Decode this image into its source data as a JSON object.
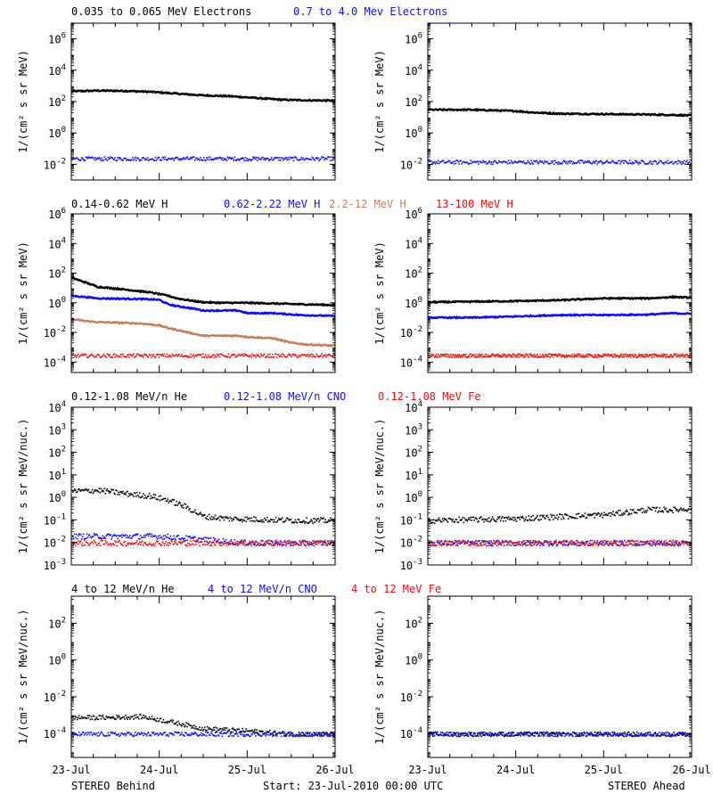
{
  "colors": {
    "black": "#000000",
    "blue": "#1010e0",
    "tan": "#c08060",
    "red": "#e01010"
  },
  "rows": [
    {
      "legend": [
        {
          "text": "0.035 to 0.065 MeV Electrons",
          "color": "#000000"
        },
        {
          "text": "0.7 to 4.0 Mev Electrons",
          "color": "#1010e0"
        }
      ]
    },
    {
      "legend": [
        {
          "text": "0.14-0.62 MeV H",
          "color": "#000000"
        },
        {
          "text": "0.62-2.22 MeV H",
          "color": "#1010e0"
        },
        {
          "text": "2.2-12 MeV H",
          "color": "#c08060"
        },
        {
          "text": "13-100 MeV H",
          "color": "#e01010"
        }
      ]
    },
    {
      "legend": [
        {
          "text": "0.12-1.08 MeV/n He",
          "color": "#000000"
        },
        {
          "text": "0.12-1.08 MeV/n CNO",
          "color": "#1010e0"
        },
        {
          "text": "0.12-1.08 MeV Fe",
          "color": "#e01010"
        }
      ]
    },
    {
      "legend": [
        {
          "text": "4 to 12 MeV/n He",
          "color": "#000000"
        },
        {
          "text": "4 to 12 MeV/n CNO",
          "color": "#1010e0"
        },
        {
          "text": "4 to 12 MeV Fe",
          "color": "#e01010"
        }
      ]
    }
  ],
  "x_ticks": [
    "23-Jul",
    "24-Jul",
    "25-Jul",
    "26-Jul"
  ],
  "footer": {
    "left": "STEREO Behind",
    "center": "Start: 23-Jul-2010 00:00 UTC",
    "right": "STEREO Ahead"
  },
  "chart_data": [
    {
      "type": "scatter",
      "panel": "STEREO Behind, row 1",
      "yscale": "log",
      "ylabel": "1/(cm² s sr MeV)",
      "ylim": [
        0.001,
        10000000
      ],
      "yticks": [
        {
          "v": 0.01,
          "t": "10",
          "e": "-2"
        },
        {
          "v": 1,
          "t": "10",
          "e": "0"
        },
        {
          "v": 100,
          "t": "10",
          "e": "2"
        },
        {
          "v": 10000,
          "t": "10",
          "e": "4"
        },
        {
          "v": 1000000,
          "t": "10",
          "e": "6"
        }
      ],
      "x_days": [
        0,
        3
      ],
      "x_tick_labels": [
        "23-Jul",
        "24-Jul",
        "25-Jul",
        "26-Jul"
      ],
      "series": [
        {
          "name": "0.035 to 0.065 MeV Electrons",
          "color": "#000000",
          "kind": "line",
          "x": [
            0,
            0.3,
            0.6,
            0.9,
            1.2,
            1.5,
            1.8,
            2.1,
            2.4,
            2.7,
            3.0
          ],
          "y": [
            450,
            500,
            480,
            420,
            320,
            250,
            220,
            170,
            130,
            120,
            115
          ]
        },
        {
          "name": "0.7 to 4.0 Mev Electrons",
          "color": "#1010e0",
          "kind": "noisy",
          "x": [
            0,
            1,
            2,
            3
          ],
          "y": [
            0.025,
            0.025,
            0.025,
            0.025
          ]
        }
      ]
    },
    {
      "type": "scatter",
      "panel": "STEREO Ahead, row 1",
      "yscale": "log",
      "ylabel": "1/(cm² s sr MeV)",
      "ylim": [
        0.001,
        10000000
      ],
      "yticks": [
        {
          "v": 0.01,
          "t": "10",
          "e": "-2"
        },
        {
          "v": 1,
          "t": "10",
          "e": "0"
        },
        {
          "v": 100,
          "t": "10",
          "e": "2"
        },
        {
          "v": 10000,
          "t": "10",
          "e": "4"
        },
        {
          "v": 1000000,
          "t": "10",
          "e": "6"
        }
      ],
      "x_days": [
        0,
        3
      ],
      "x_tick_labels": [
        "23-Jul",
        "24-Jul",
        "25-Jul",
        "26-Jul"
      ],
      "series": [
        {
          "name": "0.035 to 0.065 MeV Electrons",
          "color": "#000000",
          "kind": "line",
          "x": [
            0,
            0.5,
            1.0,
            1.2,
            1.5,
            2.0,
            2.5,
            2.8,
            3.0
          ],
          "y": [
            30,
            30,
            25,
            20,
            17,
            16,
            15,
            14,
            13
          ]
        },
        {
          "name": "0.7 to 4.0 Mev Electrons",
          "color": "#1010e0",
          "kind": "noisy",
          "x": [
            0,
            1,
            2,
            3
          ],
          "y": [
            0.015,
            0.015,
            0.015,
            0.015
          ]
        }
      ]
    },
    {
      "type": "scatter",
      "panel": "STEREO Behind, row 2",
      "yscale": "log",
      "ylabel": "1/(cm² s sr MeV)",
      "ylim": [
        2e-05,
        1000000
      ],
      "yticks": [
        {
          "v": 0.0001,
          "t": "10",
          "e": "-4"
        },
        {
          "v": 0.01,
          "t": "10",
          "e": "-2"
        },
        {
          "v": 1,
          "t": "10",
          "e": "0"
        },
        {
          "v": 100,
          "t": "10",
          "e": "2"
        },
        {
          "v": 10000,
          "t": "10",
          "e": "4"
        },
        {
          "v": 1000000,
          "t": "10",
          "e": "6"
        }
      ],
      "x_days": [
        0,
        3
      ],
      "x_tick_labels": [
        "23-Jul",
        "24-Jul",
        "25-Jul",
        "26-Jul"
      ],
      "series": [
        {
          "name": "0.14-0.62 MeV H",
          "color": "#000000",
          "kind": "line",
          "x": [
            0,
            0.15,
            0.3,
            0.6,
            0.9,
            1.1,
            1.2,
            1.4,
            1.5,
            1.7,
            2.0,
            2.3,
            2.6,
            3.0
          ],
          "y": [
            50,
            25,
            12,
            8,
            5,
            3,
            2,
            1.3,
            1.1,
            1.0,
            1.0,
            0.9,
            0.8,
            0.7
          ]
        },
        {
          "name": "0.62-2.22 MeV H",
          "color": "#1010e0",
          "kind": "line",
          "x": [
            0,
            0.15,
            0.3,
            0.8,
            1.0,
            1.1,
            1.2,
            1.4,
            1.5,
            1.9,
            2.0,
            2.3,
            2.6,
            3.0
          ],
          "y": [
            3,
            2.5,
            2,
            1.8,
            1.6,
            0.8,
            0.6,
            0.4,
            0.3,
            0.3,
            0.2,
            0.2,
            0.15,
            0.13
          ]
        },
        {
          "name": "2.2-12 MeV H",
          "color": "#c08060",
          "kind": "line",
          "x": [
            0,
            0.15,
            0.3,
            0.8,
            1.0,
            1.1,
            1.2,
            1.4,
            1.5,
            1.9,
            2.0,
            2.3,
            2.5,
            2.7,
            3.0
          ],
          "y": [
            0.08,
            0.06,
            0.05,
            0.04,
            0.03,
            0.02,
            0.015,
            0.008,
            0.006,
            0.006,
            0.005,
            0.004,
            0.002,
            0.0015,
            0.0013
          ]
        },
        {
          "name": "13-100 MeV H",
          "color": "#e01010",
          "kind": "noisy",
          "x": [
            0,
            1,
            2,
            3
          ],
          "y": [
            0.0003,
            0.0003,
            0.0003,
            0.0003
          ]
        }
      ]
    },
    {
      "type": "scatter",
      "panel": "STEREO Ahead, row 2",
      "yscale": "log",
      "ylabel": "1/(cm² s sr MeV)",
      "ylim": [
        2e-05,
        1000000
      ],
      "yticks": [
        {
          "v": 0.0001,
          "t": "10",
          "e": "-4"
        },
        {
          "v": 0.01,
          "t": "10",
          "e": "-2"
        },
        {
          "v": 1,
          "t": "10",
          "e": "0"
        },
        {
          "v": 100,
          "t": "10",
          "e": "2"
        },
        {
          "v": 10000,
          "t": "10",
          "e": "4"
        },
        {
          "v": 1000000,
          "t": "10",
          "e": "6"
        }
      ],
      "x_days": [
        0,
        3
      ],
      "x_tick_labels": [
        "23-Jul",
        "24-Jul",
        "25-Jul",
        "26-Jul"
      ],
      "series": [
        {
          "name": "0.14-0.62 MeV H",
          "color": "#000000",
          "kind": "line",
          "x": [
            0,
            0.5,
            1.0,
            1.5,
            2.0,
            2.5,
            2.8,
            3.0
          ],
          "y": [
            1.1,
            1.2,
            1.3,
            1.5,
            2.0,
            2.0,
            2.5,
            2.2
          ]
        },
        {
          "name": "0.62-2.22 MeV H",
          "color": "#1010e0",
          "kind": "line",
          "x": [
            0,
            0.5,
            1.0,
            1.5,
            2.0,
            2.5,
            2.8,
            3.0
          ],
          "y": [
            0.1,
            0.1,
            0.12,
            0.15,
            0.15,
            0.16,
            0.2,
            0.18
          ]
        },
        {
          "name": "2.2-12 MeV H",
          "color": "#c08060",
          "kind": "noisy",
          "x": [
            0,
            1,
            2,
            3
          ],
          "y": [
            0.0003,
            0.0003,
            0.0003,
            0.0003
          ]
        },
        {
          "name": "13-100 MeV H",
          "color": "#e01010",
          "kind": "noisy",
          "x": [
            0,
            1,
            2,
            3
          ],
          "y": [
            0.0003,
            0.0003,
            0.0003,
            0.0003
          ]
        }
      ]
    },
    {
      "type": "scatter",
      "panel": "STEREO Behind, row 3",
      "yscale": "log",
      "ylabel": "1/(cm² s sr MeV/nuc.)",
      "ylim": [
        0.001,
        10000
      ],
      "yticks": [
        {
          "v": 0.001,
          "t": "10",
          "e": "-3"
        },
        {
          "v": 0.01,
          "t": "10",
          "e": "-2"
        },
        {
          "v": 0.1,
          "t": "10",
          "e": "-1"
        },
        {
          "v": 1,
          "t": "10",
          "e": "0"
        },
        {
          "v": 10,
          "t": "10",
          "e": "1"
        },
        {
          "v": 100,
          "t": "10",
          "e": "2"
        },
        {
          "v": 1000,
          "t": "10",
          "e": "3"
        },
        {
          "v": 10000,
          "t": "10",
          "e": "4"
        }
      ],
      "x_days": [
        0,
        3
      ],
      "x_tick_labels": [
        "23-Jul",
        "24-Jul",
        "25-Jul",
        "26-Jul"
      ],
      "series": [
        {
          "name": "0.12-1.08 MeV/n He",
          "color": "#000000",
          "kind": "noisy",
          "x": [
            0,
            0.3,
            0.6,
            0.9,
            1.1,
            1.3,
            1.5,
            1.8,
            2.2,
            2.6,
            3.0
          ],
          "y": [
            2,
            2.2,
            1.6,
            1.2,
            0.8,
            0.4,
            0.15,
            0.12,
            0.11,
            0.1,
            0.1
          ]
        },
        {
          "name": "0.12-1.08 MeV/n CNO",
          "color": "#1010e0",
          "kind": "noisy",
          "x": [
            0,
            1,
            2,
            3
          ],
          "y": [
            0.02,
            0.02,
            0.01,
            0.01
          ]
        },
        {
          "name": "0.12-1.08 MeV Fe",
          "color": "#e01010",
          "kind": "noisy",
          "x": [
            0,
            1,
            2,
            3
          ],
          "y": [
            0.01,
            0.01,
            0.01,
            0.01
          ]
        }
      ]
    },
    {
      "type": "scatter",
      "panel": "STEREO Ahead, row 3",
      "yscale": "log",
      "ylabel": "1/(cm² s sr MeV/nuc.)",
      "ylim": [
        0.001,
        10000
      ],
      "yticks": [
        {
          "v": 0.001,
          "t": "10",
          "e": "-3"
        },
        {
          "v": 0.01,
          "t": "10",
          "e": "-2"
        },
        {
          "v": 0.1,
          "t": "10",
          "e": "-1"
        },
        {
          "v": 1,
          "t": "10",
          "e": "0"
        },
        {
          "v": 10,
          "t": "10",
          "e": "1"
        },
        {
          "v": 100,
          "t": "10",
          "e": "2"
        },
        {
          "v": 1000,
          "t": "10",
          "e": "3"
        },
        {
          "v": 10000,
          "t": "10",
          "e": "4"
        }
      ],
      "x_days": [
        0,
        3
      ],
      "x_tick_labels": [
        "23-Jul",
        "24-Jul",
        "25-Jul",
        "26-Jul"
      ],
      "series": [
        {
          "name": "0.12-1.08 MeV/n He",
          "color": "#000000",
          "kind": "noisy",
          "x": [
            0,
            1.0,
            1.5,
            2.0,
            2.5,
            2.8,
            3.0
          ],
          "y": [
            0.1,
            0.12,
            0.15,
            0.18,
            0.3,
            0.3,
            0.35
          ]
        },
        {
          "name": "0.12-1.08 MeV/n CNO",
          "color": "#1010e0",
          "kind": "noisy",
          "x": [
            0,
            1,
            2,
            3
          ],
          "y": [
            0.01,
            0.01,
            0.01,
            0.01
          ]
        },
        {
          "name": "0.12-1.08 MeV Fe",
          "color": "#e01010",
          "kind": "noisy",
          "x": [
            0,
            1,
            2,
            3
          ],
          "y": [
            0.01,
            0.01,
            0.01,
            0.01
          ]
        }
      ]
    },
    {
      "type": "scatter",
      "panel": "STEREO Behind, row 4",
      "yscale": "log",
      "ylabel": "1/(cm² s sr MeV/nuc.)",
      "ylim": [
        5e-06,
        3000
      ],
      "yticks": [
        {
          "v": 0.0001,
          "t": "10",
          "e": "-4"
        },
        {
          "v": 0.01,
          "t": "10",
          "e": "-2"
        },
        {
          "v": 1,
          "t": "10",
          "e": "0"
        },
        {
          "v": 100,
          "t": "10",
          "e": "2"
        }
      ],
      "x_days": [
        0,
        3
      ],
      "x_tick_labels": [
        "23-Jul",
        "24-Jul",
        "25-Jul",
        "26-Jul"
      ],
      "series": [
        {
          "name": "4 to 12 MeV/n He",
          "color": "#000000",
          "kind": "noisy",
          "x": [
            0,
            0.4,
            0.8,
            1.0,
            1.2,
            1.5,
            2.0,
            2.5,
            3.0
          ],
          "y": [
            0.0008,
            0.0008,
            0.0009,
            0.0006,
            0.0004,
            0.0002,
            0.00015,
            0.0001,
            0.0001
          ]
        },
        {
          "name": "4 to 12 MeV/n CNO",
          "color": "#1010e0",
          "kind": "noisy",
          "x": [
            0,
            1,
            2,
            3
          ],
          "y": [
            0.0001,
            0.0001,
            0.0001,
            0.0001
          ]
        }
      ]
    },
    {
      "type": "scatter",
      "panel": "STEREO Ahead, row 4",
      "yscale": "log",
      "ylabel": "1/(cm² s sr MeV/nuc.)",
      "ylim": [
        5e-06,
        3000
      ],
      "yticks": [
        {
          "v": 0.0001,
          "t": "10",
          "e": "-4"
        },
        {
          "v": 0.01,
          "t": "10",
          "e": "-2"
        },
        {
          "v": 1,
          "t": "10",
          "e": "0"
        },
        {
          "v": 100,
          "t": "10",
          "e": "2"
        }
      ],
      "x_days": [
        0,
        3
      ],
      "x_tick_labels": [
        "23-Jul",
        "24-Jul",
        "25-Jul",
        "26-Jul"
      ],
      "series": [
        {
          "name": "4 to 12 MeV/n He",
          "color": "#000000",
          "kind": "noisy",
          "x": [
            0,
            1,
            2,
            3
          ],
          "y": [
            0.0001,
            0.0001,
            0.0001,
            0.0001
          ]
        },
        {
          "name": "4 to 12 MeV/n CNO",
          "color": "#1010e0",
          "kind": "noisy",
          "x": [
            0,
            1,
            2,
            3
          ],
          "y": [
            0.0001,
            0.0001,
            0.0001,
            0.0001
          ]
        }
      ]
    }
  ]
}
